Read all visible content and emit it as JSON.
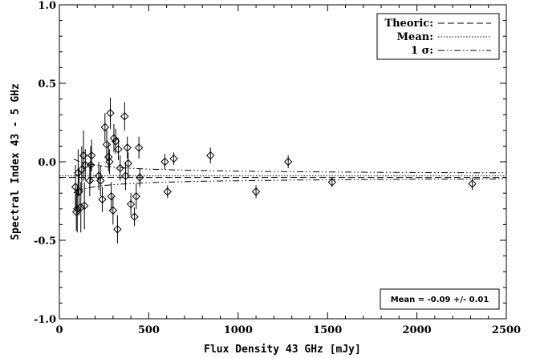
{
  "chart_data": {
    "type": "scatter",
    "title": "",
    "xlabel": "Flux Density 43 GHz [mJy]",
    "ylabel": "Spectral Index 43 - 5 GHz",
    "xlim": [
      0,
      2500
    ],
    "ylim": [
      -1.0,
      1.0
    ],
    "xticks": [
      0,
      500,
      1000,
      1500,
      2000,
      2500
    ],
    "yticks": [
      -1.0,
      -0.5,
      0.0,
      0.5,
      1.0
    ],
    "xtick_labels": [
      "0",
      "500",
      "1000",
      "1500",
      "2000",
      "2500"
    ],
    "ytick_labels": [
      "-1.0",
      "-0.5",
      "0.0",
      "0.5",
      "1.0"
    ],
    "grid": false,
    "legend_position": "top-right",
    "legend": [
      {
        "label": "Theoric:",
        "style": "dashed"
      },
      {
        "label": "Mean:",
        "style": "dotted"
      },
      {
        "label": "1 σ:",
        "style": "dash-dot-dot"
      }
    ],
    "annotation": "Mean = -0.09 +/- 0.01",
    "theoretic_value": -0.1,
    "mean_value": -0.09,
    "sigma_band": {
      "center": -0.09,
      "k": 0.97
    },
    "points": [
      {
        "x": 90,
        "y": -0.16,
        "err": 0.14
      },
      {
        "x": 95,
        "y": -0.32,
        "err": 0.12
      },
      {
        "x": 100,
        "y": -0.3,
        "err": 0.15
      },
      {
        "x": 105,
        "y": -0.07,
        "err": 0.15
      },
      {
        "x": 110,
        "y": -0.19,
        "err": 0.15
      },
      {
        "x": 120,
        "y": -0.29,
        "err": 0.16
      },
      {
        "x": 125,
        "y": -0.05,
        "err": 0.15
      },
      {
        "x": 135,
        "y": 0.04,
        "err": 0.16
      },
      {
        "x": 140,
        "y": -0.28,
        "err": 0.15
      },
      {
        "x": 145,
        "y": -0.02,
        "err": 0.1
      },
      {
        "x": 170,
        "y": -0.12,
        "err": 0.1
      },
      {
        "x": 175,
        "y": -0.02,
        "err": 0.12
      },
      {
        "x": 180,
        "y": 0.04,
        "err": 0.1
      },
      {
        "x": 220,
        "y": -0.09,
        "err": 0.09
      },
      {
        "x": 230,
        "y": -0.12,
        "err": 0.1
      },
      {
        "x": 240,
        "y": -0.24,
        "err": 0.08
      },
      {
        "x": 255,
        "y": 0.22,
        "err": 0.09
      },
      {
        "x": 265,
        "y": 0.11,
        "err": 0.1
      },
      {
        "x": 275,
        "y": 0.03,
        "err": 0.09
      },
      {
        "x": 280,
        "y": 0.0,
        "err": 0.08
      },
      {
        "x": 285,
        "y": 0.31,
        "err": 0.1
      },
      {
        "x": 290,
        "y": -0.22,
        "err": 0.09
      },
      {
        "x": 300,
        "y": -0.31,
        "err": 0.09
      },
      {
        "x": 305,
        "y": 0.15,
        "err": 0.09
      },
      {
        "x": 315,
        "y": 0.13,
        "err": 0.08
      },
      {
        "x": 325,
        "y": -0.43,
        "err": 0.09
      },
      {
        "x": 330,
        "y": 0.08,
        "err": 0.07
      },
      {
        "x": 340,
        "y": -0.04,
        "err": 0.08
      },
      {
        "x": 365,
        "y": 0.29,
        "err": 0.09
      },
      {
        "x": 370,
        "y": -0.09,
        "err": 0.09
      },
      {
        "x": 380,
        "y": 0.09,
        "err": 0.07
      },
      {
        "x": 385,
        "y": -0.01,
        "err": 0.07
      },
      {
        "x": 400,
        "y": -0.27,
        "err": 0.07
      },
      {
        "x": 420,
        "y": -0.35,
        "err": 0.06
      },
      {
        "x": 430,
        "y": -0.22,
        "err": 0.08
      },
      {
        "x": 445,
        "y": 0.09,
        "err": 0.07
      },
      {
        "x": 450,
        "y": -0.1,
        "err": 0.06
      },
      {
        "x": 590,
        "y": 0.0,
        "err": 0.05
      },
      {
        "x": 605,
        "y": -0.19,
        "err": 0.04
      },
      {
        "x": 640,
        "y": 0.02,
        "err": 0.04
      },
      {
        "x": 845,
        "y": 0.04,
        "err": 0.05
      },
      {
        "x": 1100,
        "y": -0.19,
        "err": 0.04
      },
      {
        "x": 1280,
        "y": 0.0,
        "err": 0.04
      },
      {
        "x": 1525,
        "y": -0.13,
        "err": 0.03
      },
      {
        "x": 2310,
        "y": -0.14,
        "err": 0.04
      }
    ]
  }
}
